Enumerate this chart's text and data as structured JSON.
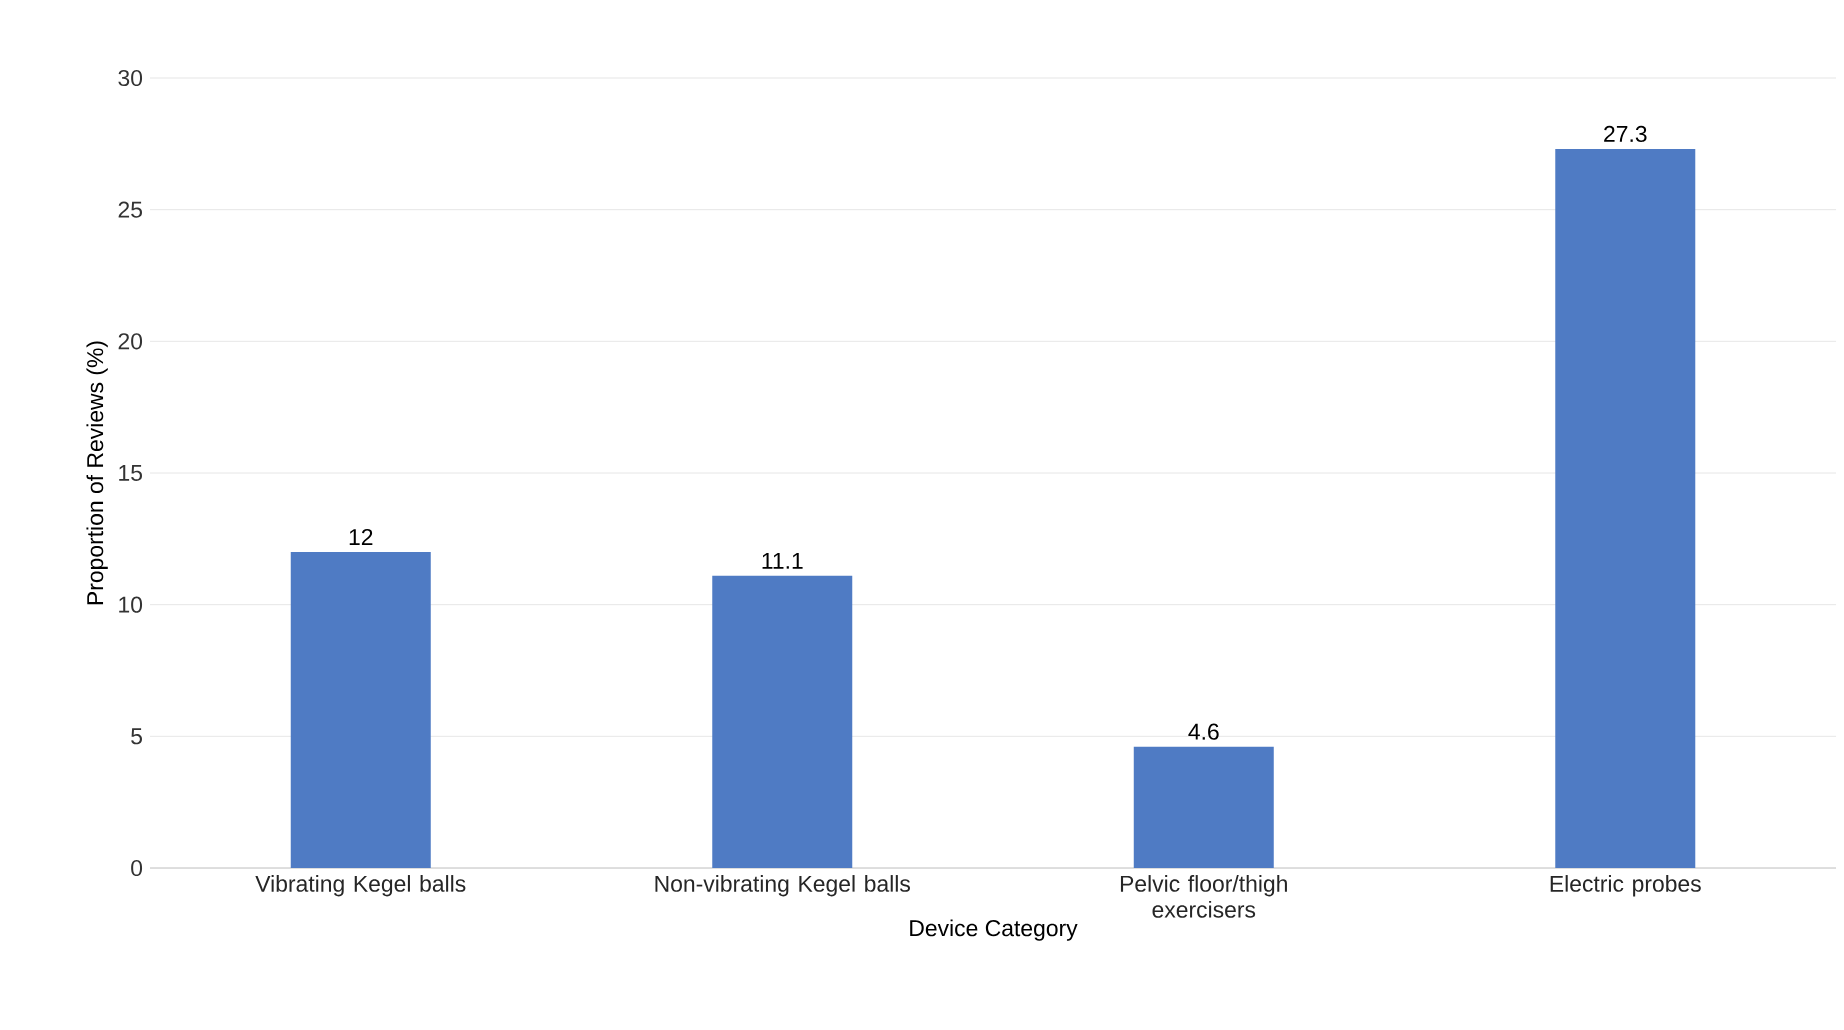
{
  "chart_data": {
    "type": "bar",
    "xlabel": "Device Category",
    "ylabel": "Proportion of Reviews (%)",
    "categories": [
      "Vibrating Kegel balls",
      "Non-vibrating Kegel balls",
      "Pelvic floor/thigh exercisers",
      "Electric probes"
    ],
    "values": [
      12,
      11.1,
      4.6,
      27.3
    ],
    "color": "#4f7bc4",
    "ylim": [
      0,
      30
    ],
    "yticks": [
      0,
      5,
      10,
      15,
      20,
      25,
      30
    ],
    "grid": "y",
    "data_labels": true
  }
}
